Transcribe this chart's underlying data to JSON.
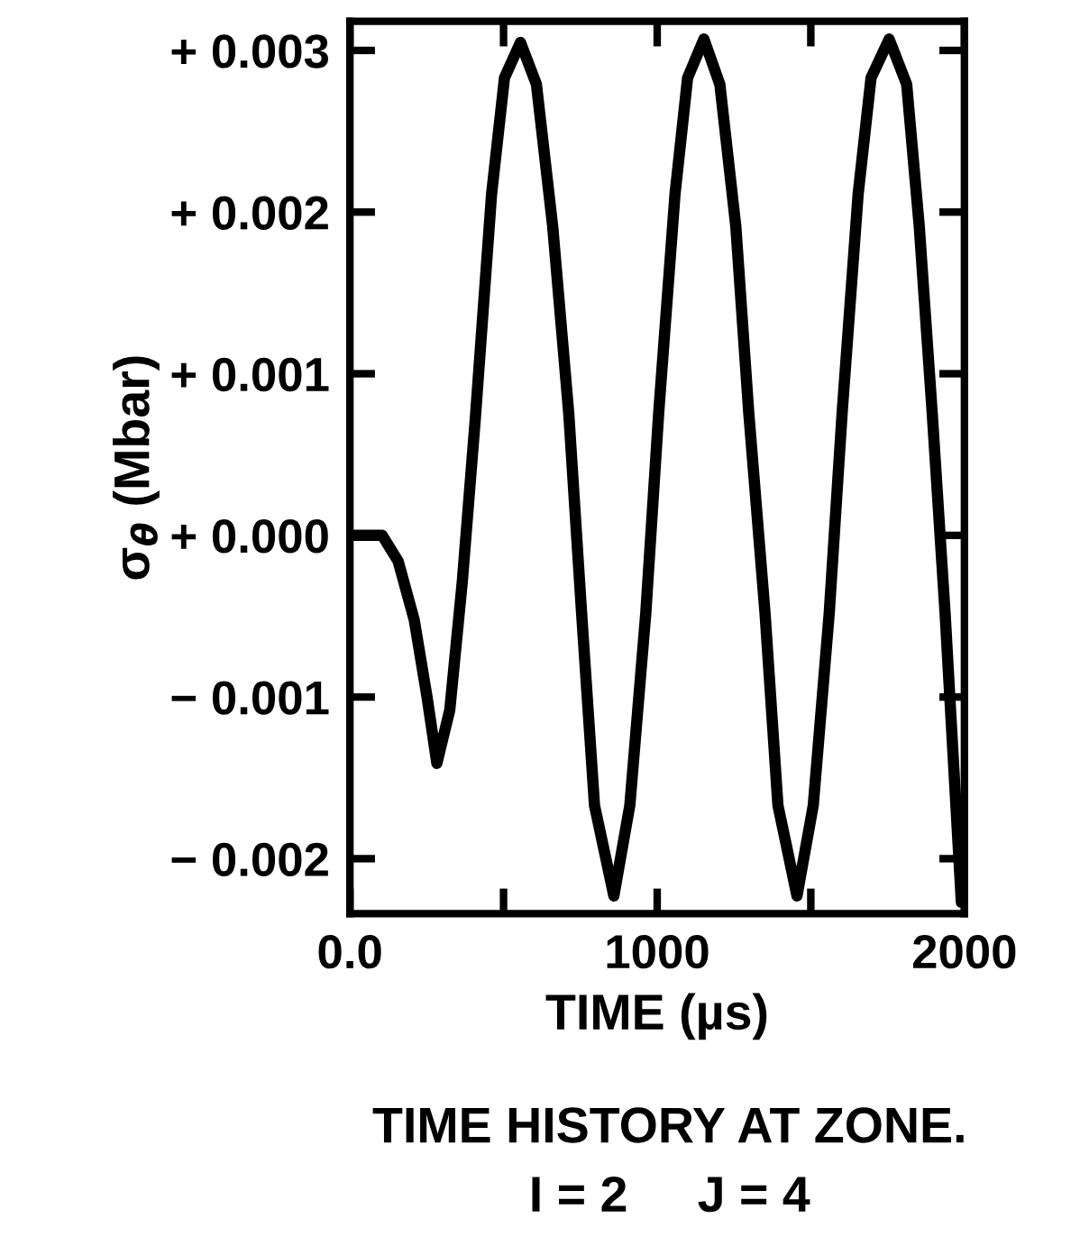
{
  "chart_data": {
    "type": "line",
    "xlabel": "TIME (µs)",
    "ylabel": "σ$_{θ}$ (Mbar)",
    "annotations": [
      "TIME HISTORY AT ZONE.",
      "I = 2     J = 4"
    ],
    "x": [
      0,
      105,
      157,
      209,
      251,
      283,
      325,
      366,
      408,
      461,
      503,
      555,
      607,
      660,
      712,
      754,
      796,
      859,
      911,
      963,
      1005,
      1058,
      1099,
      1152,
      1204,
      1256,
      1298,
      1351,
      1393,
      1455,
      1508,
      1560,
      1602,
      1654,
      1696,
      1755,
      1812,
      1853,
      1895,
      1937,
      1990
    ],
    "series": [
      {
        "color": "#000000",
        "values": [
          0,
          0,
          -0.00016,
          -0.00052,
          -0.001,
          -0.00141,
          -0.00108,
          -0.00028,
          0.00072,
          0.00211,
          0.00283,
          0.00305,
          0.00279,
          0.00191,
          0.00076,
          -0.00048,
          -0.00167,
          -0.00223,
          -0.00167,
          -0.00048,
          0.00076,
          0.00211,
          0.00283,
          0.00307,
          0.00279,
          0.00191,
          0.00076,
          -0.00048,
          -0.00167,
          -0.00223,
          -0.00167,
          -0.00048,
          0.00076,
          0.00211,
          0.00283,
          0.00307,
          0.00279,
          0.00191,
          0.00076,
          -0.00048,
          -0.00227
        ]
      }
    ],
    "xlim": [
      0,
      2000
    ],
    "ylim": [
      -0.00234,
      0.00318
    ],
    "xticks": [
      {
        "value": 0,
        "label": "0.0"
      },
      {
        "value": 500,
        "label": null
      },
      {
        "value": 1000,
        "label": "1000"
      },
      {
        "value": 1500,
        "label": null
      },
      {
        "value": 2000,
        "label": "2000"
      }
    ],
    "yticks": [
      {
        "value": -0.002,
        "label": "− 0.002"
      },
      {
        "value": -0.001,
        "label": "− 0.001"
      },
      {
        "value": 0,
        "label": "+ 0.000"
      },
      {
        "value": 0.001,
        "label": "+ 0.001"
      },
      {
        "value": 0.002,
        "label": "+ 0.002"
      },
      {
        "value": 0.003,
        "label": "+ 0.003"
      }
    ],
    "grid": false,
    "legend": false,
    "marker": "none",
    "line_style": "solid"
  }
}
